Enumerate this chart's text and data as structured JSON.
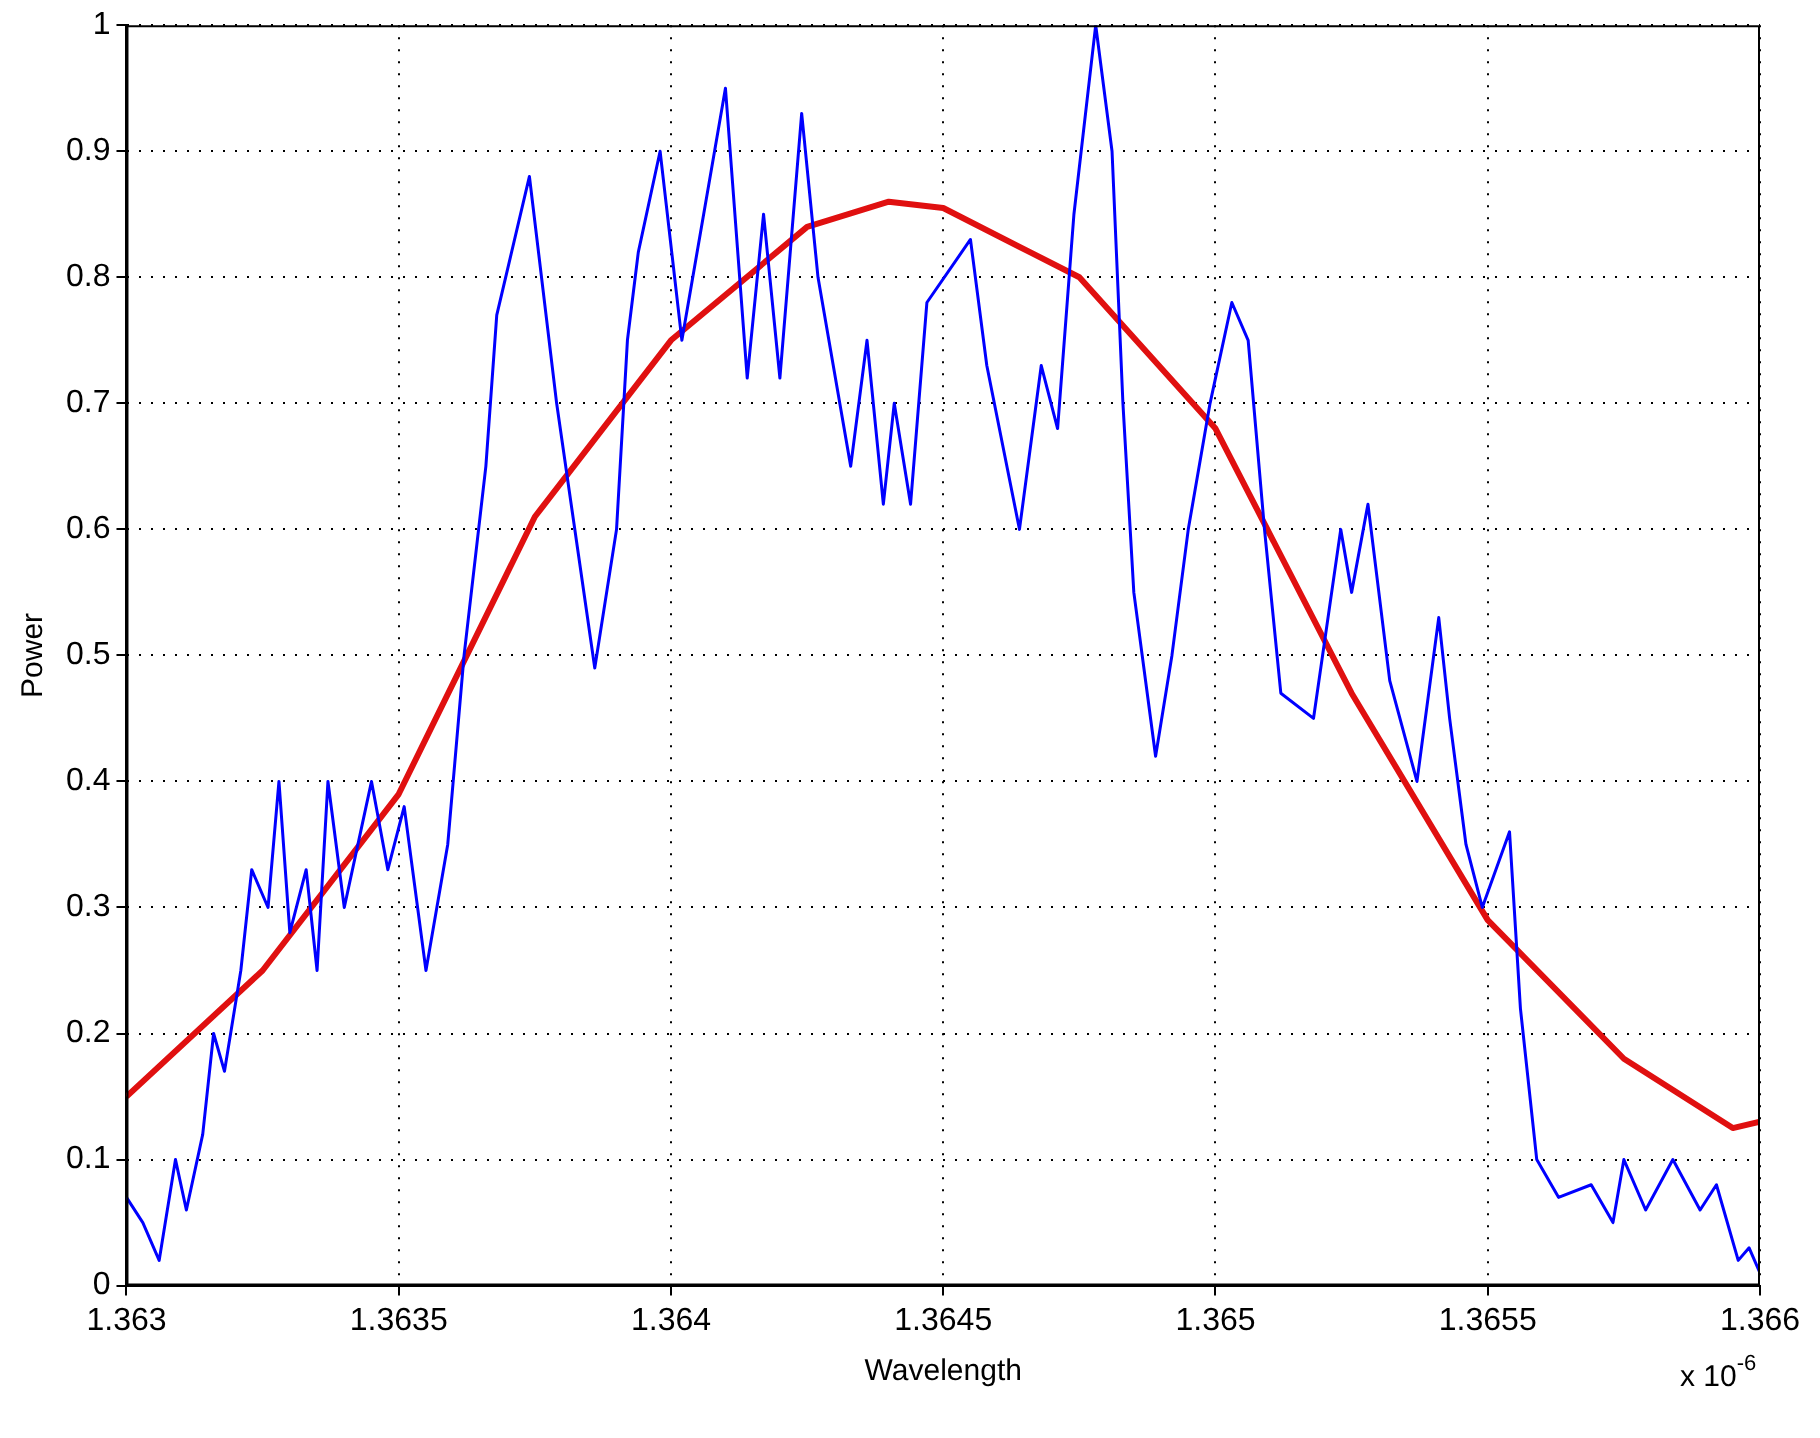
{
  "chart_data": {
    "type": "line",
    "xlabel": "Wavelength",
    "ylabel": "Power",
    "annotations": [
      "x 10$^{-6}$"
    ],
    "xlim": [
      1.363,
      1.366
    ],
    "xticks": [
      1.363,
      1.3635,
      1.364,
      1.3645,
      1.365,
      1.3655,
      1.366
    ],
    "ylim": [
      0,
      1
    ],
    "yticks": [
      0,
      0.1,
      0.2,
      0.3,
      0.4,
      0.5,
      0.6,
      0.7,
      0.8,
      0.9,
      1
    ],
    "grid": true,
    "legend": false,
    "marker": "none",
    "line_style": "solid",
    "series": [
      {
        "color": "#0000ff",
        "x": [
          1.363,
          1.36303,
          1.36306,
          1.36309,
          1.36311,
          1.36314,
          1.36316,
          1.36318,
          1.36321,
          1.36323,
          1.36326,
          1.36328,
          1.3633,
          1.36333,
          1.36335,
          1.36337,
          1.3634,
          1.36345,
          1.36348,
          1.36351,
          1.36355,
          1.36359,
          1.36362,
          1.36366,
          1.36368,
          1.36374,
          1.36379,
          1.36383,
          1.36386,
          1.3639,
          1.36392,
          1.36394,
          1.36398,
          1.36402,
          1.36408,
          1.3641,
          1.36414,
          1.36417,
          1.3642,
          1.36424,
          1.36427,
          1.36433,
          1.36436,
          1.36439,
          1.36441,
          1.36444,
          1.36447,
          1.36455,
          1.36458,
          1.36464,
          1.36468,
          1.36471,
          1.36474,
          1.36478,
          1.36481,
          1.36483,
          1.36485,
          1.36489,
          1.36492,
          1.36495,
          1.36499,
          1.36503,
          1.36506,
          1.36509,
          1.36512,
          1.36518,
          1.36523,
          1.36525,
          1.36528,
          1.36532,
          1.36537,
          1.36541,
          1.36543,
          1.36546,
          1.36549,
          1.36554,
          1.36556,
          1.36559,
          1.36563,
          1.36569,
          1.36573,
          1.36575,
          1.36579,
          1.36584,
          1.36589,
          1.36592,
          1.36596,
          1.36598,
          1.366
        ],
        "values": [
          0.07,
          0.05,
          0.02,
          0.1,
          0.06,
          0.12,
          0.2,
          0.17,
          0.25,
          0.33,
          0.3,
          0.4,
          0.28,
          0.33,
          0.25,
          0.4,
          0.3,
          0.4,
          0.33,
          0.38,
          0.25,
          0.35,
          0.5,
          0.65,
          0.77,
          0.88,
          0.7,
          0.58,
          0.49,
          0.6,
          0.75,
          0.82,
          0.9,
          0.75,
          0.9,
          0.95,
          0.72,
          0.85,
          0.72,
          0.93,
          0.8,
          0.65,
          0.75,
          0.62,
          0.7,
          0.62,
          0.78,
          0.83,
          0.73,
          0.6,
          0.73,
          0.68,
          0.85,
          1.0,
          0.9,
          0.7,
          0.55,
          0.42,
          0.5,
          0.6,
          0.7,
          0.78,
          0.75,
          0.6,
          0.47,
          0.45,
          0.6,
          0.55,
          0.62,
          0.48,
          0.4,
          0.53,
          0.45,
          0.35,
          0.3,
          0.36,
          0.22,
          0.1,
          0.07,
          0.08,
          0.05,
          0.1,
          0.06,
          0.1,
          0.06,
          0.08,
          0.02,
          0.03,
          0.01
        ]
      },
      {
        "color": "#e01010",
        "x": [
          1.363,
          1.36325,
          1.3635,
          1.36375,
          1.364,
          1.36425,
          1.3644,
          1.3645,
          1.36475,
          1.365,
          1.36525,
          1.3655,
          1.36575,
          1.36595,
          1.366
        ],
        "values": [
          0.15,
          0.25,
          0.39,
          0.61,
          0.75,
          0.84,
          0.86,
          0.855,
          0.8,
          0.68,
          0.47,
          0.29,
          0.18,
          0.125,
          0.13
        ]
      }
    ]
  }
}
